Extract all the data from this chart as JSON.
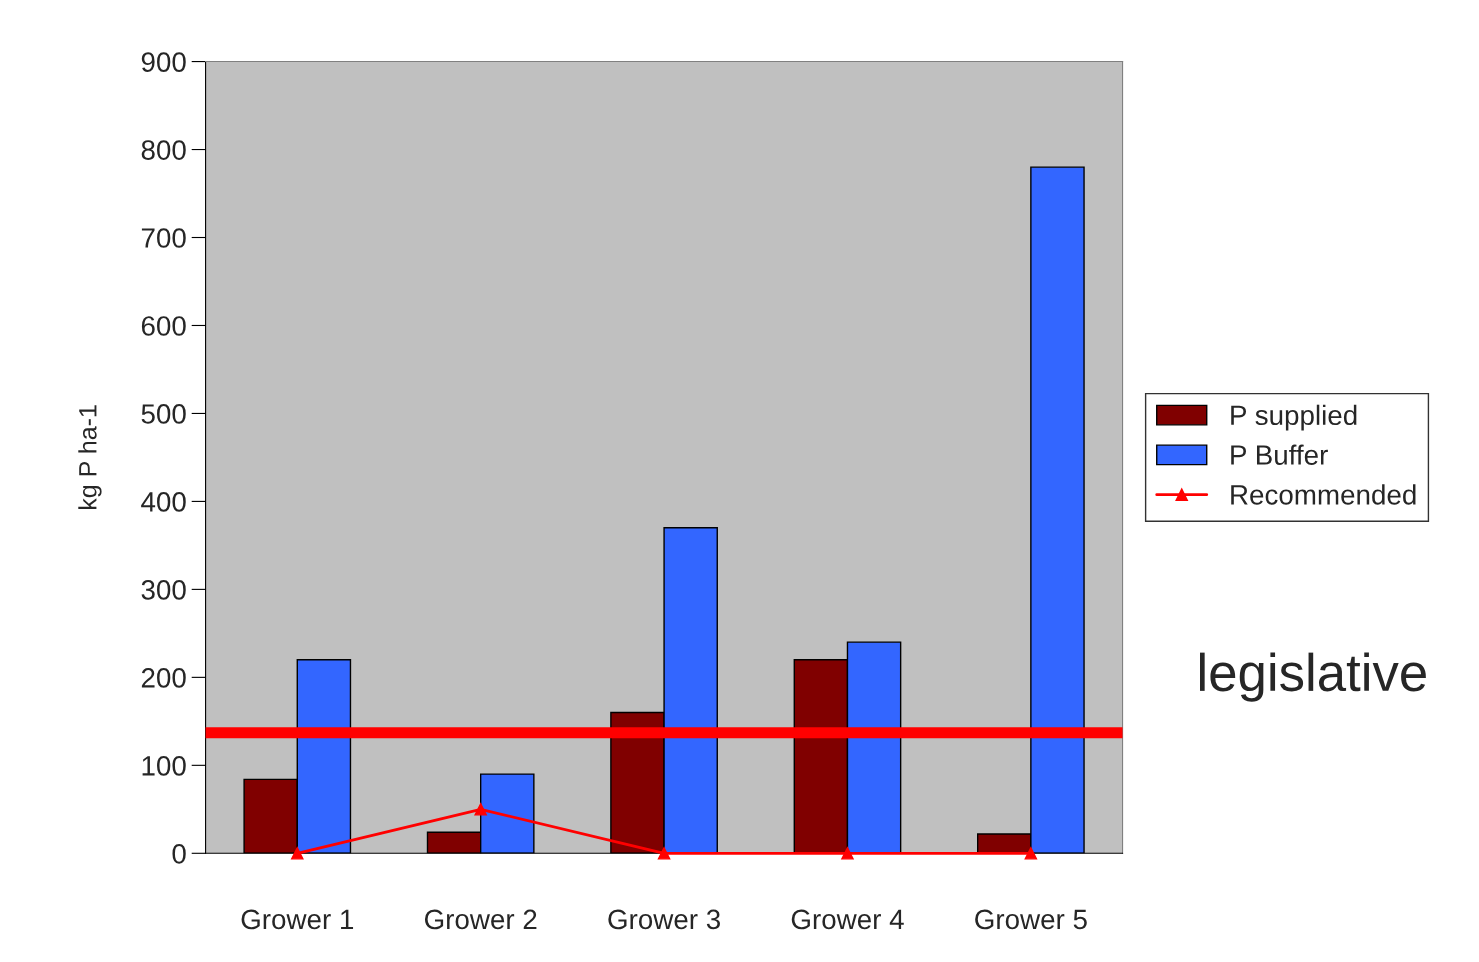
{
  "chart_data": {
    "type": "bar",
    "ylabel": "kg P ha-1",
    "categories": [
      "Grower 1",
      "Grower 2",
      "Grower 3",
      "Grower 4",
      "Grower 5"
    ],
    "series": [
      {
        "name": "P supplied",
        "color": "#800000",
        "values": [
          84,
          24,
          160,
          220,
          22
        ]
      },
      {
        "name": "P Buffer",
        "color": "#3366ff",
        "values": [
          220,
          90,
          370,
          240,
          780
        ]
      },
      {
        "name": "Recommended",
        "type": "line",
        "color": "#ff0000",
        "marker": "triangle",
        "values": [
          0,
          50,
          0,
          0,
          0
        ]
      }
    ],
    "ylim": [
      0,
      900
    ],
    "yticks": [
      0,
      100,
      200,
      300,
      400,
      500,
      600,
      700,
      800,
      900
    ],
    "ref_lines": [
      {
        "axis": "y",
        "value": 137,
        "label": "legislative",
        "color": "#ff0000"
      }
    ],
    "grid": false,
    "legend": "right"
  }
}
